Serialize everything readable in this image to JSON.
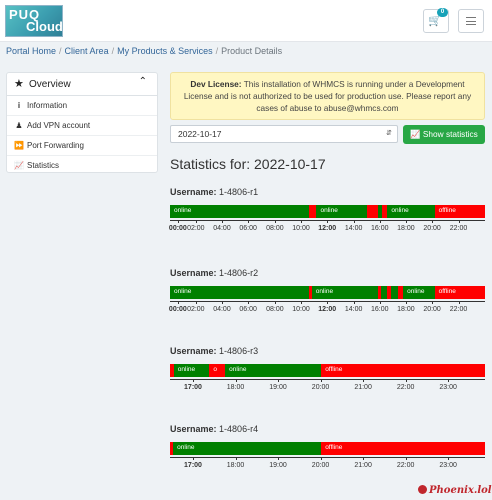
{
  "header": {
    "logo_line1": "PUQ",
    "logo_line2": "Cloud",
    "cart_count": "0"
  },
  "breadcrumb": [
    {
      "label": "Portal Home",
      "link": true
    },
    {
      "label": "Client Area",
      "link": true
    },
    {
      "label": "My Products & Services",
      "link": true
    },
    {
      "label": "Product Details",
      "link": false
    }
  ],
  "sidebar": {
    "title": "Overview",
    "items": [
      {
        "label": "Information",
        "icon": "info-icon"
      },
      {
        "label": "Add VPN account",
        "icon": "user-plus-icon"
      },
      {
        "label": "Port Forwarding",
        "icon": "forward-icon"
      },
      {
        "label": "Statistics",
        "icon": "chart-icon"
      }
    ]
  },
  "alert": {
    "bold": "Dev License:",
    "text": " This installation of WHMCS is running under a Development License and is not authorized to be used for production use. Please report any cases of abuse to abuse@whmcs.com"
  },
  "controls": {
    "date_value": "2022-10-17",
    "show_button": "Show statistics"
  },
  "stats_title": "Statistics for: 2022-10-17",
  "colors": {
    "online": "#008000",
    "offline": "#ff0000"
  },
  "sessions": [
    {
      "user_label": "Username:",
      "username": "1-4806-r1",
      "segments": [
        {
          "state": "online",
          "start": 0.0,
          "end": 0.44,
          "label": "online"
        },
        {
          "state": "offline",
          "start": 0.44,
          "end": 0.465,
          "label": ""
        },
        {
          "state": "online",
          "start": 0.465,
          "end": 0.625,
          "label": "online"
        },
        {
          "state": "offline",
          "start": 0.625,
          "end": 0.66,
          "label": ""
        },
        {
          "state": "online",
          "start": 0.66,
          "end": 0.672,
          "label": ""
        },
        {
          "state": "offline",
          "start": 0.672,
          "end": 0.69,
          "label": ""
        },
        {
          "state": "online",
          "start": 0.69,
          "end": 0.84,
          "label": "online"
        },
        {
          "state": "offline",
          "start": 0.84,
          "end": 1.0,
          "label": "offline"
        }
      ],
      "ticks": [
        {
          "label": "00:00",
          "pos": 0.025,
          "bold": true
        },
        {
          "label": "02:00",
          "pos": 0.082,
          "bold": false
        },
        {
          "label": "04:00",
          "pos": 0.165,
          "bold": false
        },
        {
          "label": "06:00",
          "pos": 0.248,
          "bold": false
        },
        {
          "label": "08:00",
          "pos": 0.333,
          "bold": false
        },
        {
          "label": "10:00",
          "pos": 0.416,
          "bold": false
        },
        {
          "label": "12:00",
          "pos": 0.499,
          "bold": true
        },
        {
          "label": "14:00",
          "pos": 0.583,
          "bold": false
        },
        {
          "label": "16:00",
          "pos": 0.666,
          "bold": false
        },
        {
          "label": "18:00",
          "pos": 0.749,
          "bold": false
        },
        {
          "label": "20:00",
          "pos": 0.832,
          "bold": false
        },
        {
          "label": "22:00",
          "pos": 0.916,
          "bold": false
        }
      ]
    },
    {
      "user_label": "Username:",
      "username": "1-4806-r2",
      "segments": [
        {
          "state": "online",
          "start": 0.0,
          "end": 0.44,
          "label": "online"
        },
        {
          "state": "offline",
          "start": 0.44,
          "end": 0.45,
          "label": ""
        },
        {
          "state": "online",
          "start": 0.45,
          "end": 0.66,
          "label": "online"
        },
        {
          "state": "offline",
          "start": 0.66,
          "end": 0.67,
          "label": ""
        },
        {
          "state": "online",
          "start": 0.67,
          "end": 0.69,
          "label": ""
        },
        {
          "state": "offline",
          "start": 0.69,
          "end": 0.7,
          "label": ""
        },
        {
          "state": "online",
          "start": 0.7,
          "end": 0.725,
          "label": ""
        },
        {
          "state": "offline",
          "start": 0.725,
          "end": 0.74,
          "label": ""
        },
        {
          "state": "online",
          "start": 0.74,
          "end": 0.84,
          "label": "online"
        },
        {
          "state": "offline",
          "start": 0.84,
          "end": 1.0,
          "label": "offline"
        }
      ],
      "ticks": [
        {
          "label": "00:00",
          "pos": 0.025,
          "bold": true
        },
        {
          "label": "02:00",
          "pos": 0.082,
          "bold": false
        },
        {
          "label": "04:00",
          "pos": 0.165,
          "bold": false
        },
        {
          "label": "06:00",
          "pos": 0.248,
          "bold": false
        },
        {
          "label": "08:00",
          "pos": 0.333,
          "bold": false
        },
        {
          "label": "10:00",
          "pos": 0.416,
          "bold": false
        },
        {
          "label": "12:00",
          "pos": 0.499,
          "bold": true
        },
        {
          "label": "14:00",
          "pos": 0.583,
          "bold": false
        },
        {
          "label": "16:00",
          "pos": 0.666,
          "bold": false
        },
        {
          "label": "18:00",
          "pos": 0.749,
          "bold": false
        },
        {
          "label": "20:00",
          "pos": 0.832,
          "bold": false
        },
        {
          "label": "22:00",
          "pos": 0.916,
          "bold": false
        }
      ]
    },
    {
      "user_label": "Username:",
      "username": "1-4806-r3",
      "segments": [
        {
          "state": "offline",
          "start": 0.0,
          "end": 0.012,
          "label": ""
        },
        {
          "state": "online",
          "start": 0.012,
          "end": 0.125,
          "label": "online"
        },
        {
          "state": "offline",
          "start": 0.125,
          "end": 0.175,
          "label": "o"
        },
        {
          "state": "online",
          "start": 0.175,
          "end": 0.48,
          "label": "online"
        },
        {
          "state": "offline",
          "start": 0.48,
          "end": 1.0,
          "label": "offline"
        }
      ],
      "ticks": [
        {
          "label": "17:00",
          "pos": 0.073,
          "bold": true
        },
        {
          "label": "18:00",
          "pos": 0.208,
          "bold": false
        },
        {
          "label": "19:00",
          "pos": 0.343,
          "bold": false
        },
        {
          "label": "20:00",
          "pos": 0.478,
          "bold": false
        },
        {
          "label": "21:00",
          "pos": 0.613,
          "bold": false
        },
        {
          "label": "22:00",
          "pos": 0.748,
          "bold": false
        },
        {
          "label": "23:00",
          "pos": 0.883,
          "bold": false
        }
      ]
    },
    {
      "user_label": "Username:",
      "username": "1-4806-r4",
      "segments": [
        {
          "state": "offline",
          "start": 0.0,
          "end": 0.01,
          "label": ""
        },
        {
          "state": "online",
          "start": 0.01,
          "end": 0.48,
          "label": "online"
        },
        {
          "state": "offline",
          "start": 0.48,
          "end": 1.0,
          "label": "offline"
        }
      ],
      "ticks": [
        {
          "label": "17:00",
          "pos": 0.073,
          "bold": true
        },
        {
          "label": "18:00",
          "pos": 0.208,
          "bold": false
        },
        {
          "label": "19:00",
          "pos": 0.343,
          "bold": false
        },
        {
          "label": "20:00",
          "pos": 0.478,
          "bold": false
        },
        {
          "label": "21:00",
          "pos": 0.613,
          "bold": false
        },
        {
          "label": "22:00",
          "pos": 0.748,
          "bold": false
        },
        {
          "label": "23:00",
          "pos": 0.883,
          "bold": false
        }
      ]
    }
  ],
  "brand": "Phoenix.lol"
}
